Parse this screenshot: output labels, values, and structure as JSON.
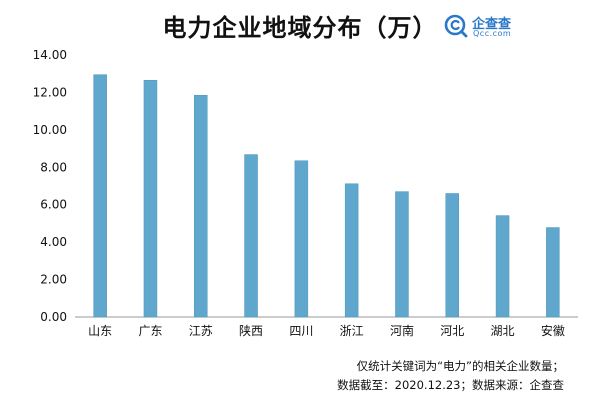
{
  "header": {
    "title": "电力企业地域分布（万）",
    "logo_name": "企查查",
    "logo_sub": "Qcc.com",
    "logo_icon": "magnifier-c-icon",
    "logo_color": "#2a78c8"
  },
  "notes": {
    "line1": "仅统计关键词为“电力”的相关企业数量；",
    "line2": "数据截至：2020.12.23；数据来源：企查查"
  },
  "colors": {
    "bar": "#5fa7cc",
    "bar_edge": "#4f97bd",
    "axis": "#9a9a9a"
  },
  "chart_data": {
    "type": "bar",
    "title": "电力企业地域分布（万）",
    "categories": [
      "山东",
      "广东",
      "江苏",
      "陕西",
      "四川",
      "浙江",
      "河南",
      "河北",
      "湖北",
      "安徽"
    ],
    "values": [
      12.95,
      12.65,
      11.85,
      8.68,
      8.35,
      7.12,
      6.7,
      6.6,
      5.42,
      4.78
    ],
    "yticks": [
      "0.00",
      "2.00",
      "4.00",
      "6.00",
      "8.00",
      "10.00",
      "12.00",
      "14.00"
    ],
    "ylim": [
      0,
      14
    ],
    "xlabel": "",
    "ylabel": "",
    "grid": false,
    "legend": "none"
  }
}
